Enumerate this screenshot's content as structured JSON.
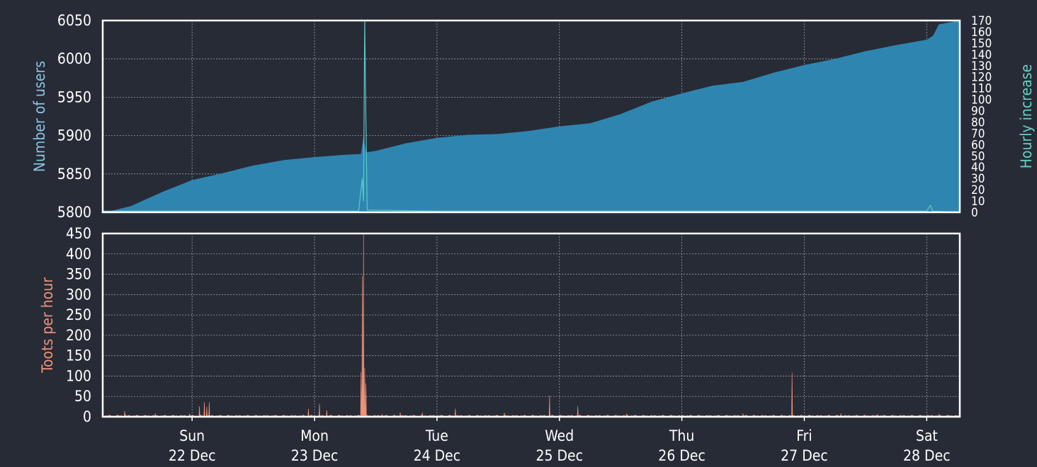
{
  "colors": {
    "background": "#272b36",
    "frame": "#ffffff",
    "grid": "#9aa0aa",
    "users_fill": "#2e86b0",
    "users_label": "#8ac6e4",
    "hourly_line": "#5cc8c8",
    "hourly_label": "#66d0c4",
    "toots_fill": "#f09378",
    "toots_label": "#f09378",
    "tick_text": "#ffffff"
  },
  "chart_data": [
    {
      "type": "area",
      "name": "users",
      "ylabel": "Number of users",
      "ylabel_right": "Hourly increase",
      "ylim": [
        5800,
        6050
      ],
      "y_ticks": [
        5800,
        5850,
        5900,
        5950,
        6000,
        6050
      ],
      "hourly_ylim": [
        0,
        170
      ],
      "hourly_tick_labels": [
        "0",
        "10",
        "20",
        "30",
        "40",
        "50",
        "60",
        "70",
        "80",
        "90",
        "100",
        "110",
        "120",
        "130",
        "140",
        "150",
        "160",
        "170"
      ],
      "grid": true,
      "x_range_days": [
        21.27,
        28.27
      ],
      "users": [
        [
          21.27,
          5799
        ],
        [
          21.5,
          5808
        ],
        [
          21.75,
          5826
        ],
        [
          22.0,
          5842
        ],
        [
          22.25,
          5851
        ],
        [
          22.5,
          5861
        ],
        [
          22.75,
          5868
        ],
        [
          23.0,
          5872
        ],
        [
          23.25,
          5875
        ],
        [
          23.38,
          5876
        ],
        [
          23.4,
          5900
        ],
        [
          23.42,
          5878
        ],
        [
          23.5,
          5880
        ],
        [
          23.75,
          5890
        ],
        [
          24.0,
          5897
        ],
        [
          24.25,
          5901
        ],
        [
          24.5,
          5902
        ],
        [
          24.75,
          5906
        ],
        [
          25.0,
          5912
        ],
        [
          25.25,
          5916
        ],
        [
          25.5,
          5928
        ],
        [
          25.75,
          5944
        ],
        [
          26.0,
          5955
        ],
        [
          26.25,
          5965
        ],
        [
          26.5,
          5970
        ],
        [
          26.75,
          5982
        ],
        [
          27.0,
          5992
        ],
        [
          27.25,
          6000
        ],
        [
          27.5,
          6010
        ],
        [
          27.75,
          6018
        ],
        [
          28.0,
          6025
        ],
        [
          28.05,
          6030
        ],
        [
          28.1,
          6045
        ],
        [
          28.27,
          6050
        ]
      ],
      "hourly": [
        [
          21.27,
          1
        ],
        [
          22.0,
          1
        ],
        [
          23.0,
          1
        ],
        [
          23.36,
          1
        ],
        [
          23.39,
          30
        ],
        [
          23.4,
          10
        ],
        [
          23.41,
          170
        ],
        [
          23.42,
          80
        ],
        [
          23.43,
          2
        ],
        [
          24.0,
          1
        ],
        [
          25.0,
          1
        ],
        [
          26.0,
          1
        ],
        [
          27.0,
          1
        ],
        [
          28.0,
          1
        ],
        [
          28.03,
          6
        ],
        [
          28.05,
          1
        ],
        [
          28.27,
          0
        ]
      ]
    },
    {
      "type": "area",
      "name": "toots",
      "ylabel": "Toots per hour",
      "ylim": [
        0,
        450
      ],
      "y_ticks": [
        0,
        50,
        100,
        150,
        200,
        250,
        300,
        350,
        400,
        450
      ],
      "grid": true,
      "x_range_days": [
        21.27,
        28.27
      ],
      "spikes": [
        [
          21.45,
          14
        ],
        [
          21.7,
          8
        ],
        [
          21.98,
          8
        ],
        [
          22.06,
          26
        ],
        [
          22.1,
          36
        ],
        [
          22.12,
          24
        ],
        [
          22.14,
          36
        ],
        [
          22.95,
          20
        ],
        [
          23.04,
          32
        ],
        [
          23.1,
          16
        ],
        [
          23.38,
          110
        ],
        [
          23.39,
          345
        ],
        [
          23.4,
          450
        ],
        [
          23.41,
          120
        ],
        [
          23.42,
          82
        ],
        [
          23.55,
          6
        ],
        [
          23.7,
          10
        ],
        [
          23.88,
          10
        ],
        [
          24.15,
          20
        ],
        [
          24.55,
          10
        ],
        [
          24.92,
          52
        ],
        [
          25.15,
          26
        ],
        [
          25.55,
          8
        ],
        [
          26.5,
          8
        ],
        [
          26.9,
          108
        ],
        [
          27.3,
          8
        ],
        [
          27.6,
          6
        ],
        [
          28.1,
          6
        ]
      ],
      "x_ticks": [
        {
          "day": 22,
          "weekday": "Sun",
          "date": "22 Dec"
        },
        {
          "day": 23,
          "weekday": "Mon",
          "date": "23 Dec"
        },
        {
          "day": 24,
          "weekday": "Tue",
          "date": "24 Dec"
        },
        {
          "day": 25,
          "weekday": "Wed",
          "date": "25 Dec"
        },
        {
          "day": 26,
          "weekday": "Thu",
          "date": "26 Dec"
        },
        {
          "day": 27,
          "weekday": "Fri",
          "date": "27 Dec"
        },
        {
          "day": 28,
          "weekday": "Sat",
          "date": "28 Dec"
        }
      ]
    }
  ]
}
